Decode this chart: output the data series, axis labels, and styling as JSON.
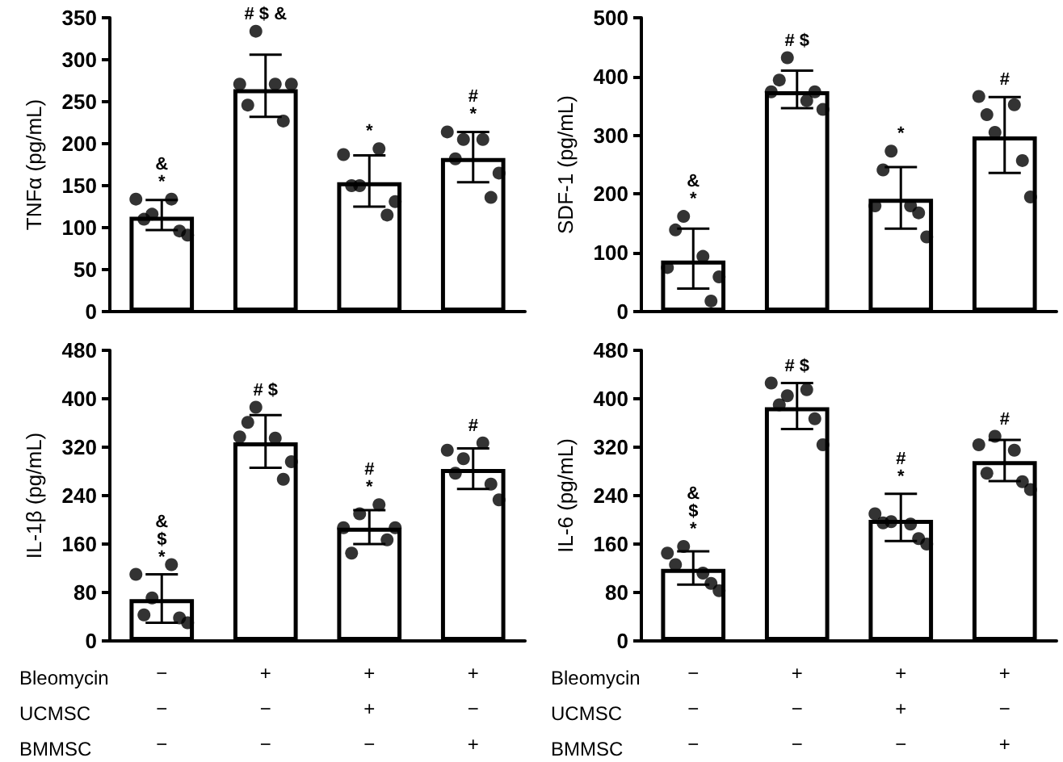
{
  "chart_data": [
    {
      "type": "bar",
      "ylabel": "TNFα (pg/mL)",
      "categories": [
        "−\n−\n−",
        "+\n−\n−",
        "+\n+\n−",
        "+\n−\n+"
      ],
      "ylim": [
        0,
        350
      ],
      "yticks": [
        0,
        50,
        100,
        150,
        200,
        250,
        300,
        350
      ],
      "tick_labels": "y",
      "grid": false,
      "annotations": [
        {
          "text": "&\n*",
          "x": "−\n−\n−",
          "y": 134
        },
        {
          "text": "# $ &",
          "x": "+\n−\n−",
          "y": 334
        },
        {
          "text": "*",
          "x": "+\n+\n−",
          "y": 194
        },
        {
          "text": "#\n*",
          "x": "+\n−\n+",
          "y": 214
        }
      ],
      "series": [
        {
          "type": "bar",
          "color": "#ffffff",
          "values": [
            113,
            265,
            154,
            183
          ],
          "errors": [
            [
              97,
              133
            ],
            [
              232,
              306
            ],
            [
              125,
              186
            ],
            [
              154,
              214
            ]
          ]
        },
        {
          "type": "scatter",
          "color": "#000000",
          "marker": "circle",
          "x": [
            "−\n−\n−",
            "−\n−\n−",
            "−\n−\n−",
            "−\n−\n−",
            "−\n−\n−",
            "−\n−\n−",
            "+\n−\n−",
            "+\n−\n−",
            "+\n−\n−",
            "+\n−\n−",
            "+\n−\n−",
            "+\n−\n−",
            "+\n+\n−",
            "+\n+\n−",
            "+\n+\n−",
            "+\n+\n−",
            "+\n+\n−",
            "+\n+\n−",
            "+\n−\n+",
            "+\n−\n+",
            "+\n−\n+",
            "+\n−\n+",
            "+\n−\n+",
            "+\n−\n+"
          ],
          "values": [
            134,
            116,
            134,
            91,
            110,
            96,
            271,
            334,
            271,
            271,
            246,
            227,
            187,
            150,
            194,
            131,
            150,
            115,
            214,
            205,
            205,
            165,
            182,
            136
          ]
        }
      ]
    },
    {
      "type": "bar",
      "ylabel": "SDF-1 (pg/mL)",
      "categories": [
        "−\n−\n−",
        "+\n−\n−",
        "+\n+\n−",
        "+\n−\n+"
      ],
      "ylim": [
        0,
        500
      ],
      "yticks": [
        0,
        100,
        200,
        300,
        400,
        500
      ],
      "tick_labels": "y",
      "grid": false,
      "annotations": [
        {
          "text": "&\n*",
          "x": "−\n−\n−",
          "y": 162
        },
        {
          "text": "# $",
          "x": "+\n−\n−",
          "y": 432
        },
        {
          "text": "*",
          "x": "+\n+\n−",
          "y": 273
        },
        {
          "text": "#",
          "x": "+\n−\n+",
          "y": 366
        }
      ],
      "series": [
        {
          "type": "bar",
          "color": "#ffffff",
          "values": [
            87,
            375,
            192,
            298
          ],
          "errors": [
            [
              39,
              141
            ],
            [
              346,
              410
            ],
            [
              141,
              246
            ],
            [
              236,
              365
            ]
          ]
        },
        {
          "type": "scatter",
          "color": "#000000",
          "marker": "circle",
          "x": [
            "−\n−\n−",
            "−\n−\n−",
            "−\n−\n−",
            "−\n−\n−",
            "−\n−\n−",
            "−\n−\n−",
            "+\n−\n−",
            "+\n−\n−",
            "+\n−\n−",
            "+\n−\n−",
            "+\n−\n−",
            "+\n−\n−",
            "+\n+\n−",
            "+\n+\n−",
            "+\n+\n−",
            "+\n+\n−",
            "+\n+\n−",
            "+\n+\n−",
            "+\n−\n+",
            "+\n−\n+",
            "+\n−\n+",
            "+\n−\n+",
            "+\n−\n+",
            "+\n−\n+"
          ],
          "values": [
            75,
            162,
            94,
            59,
            139,
            18,
            374,
            432,
            359,
            344,
            394,
            374,
            180,
            273,
            180,
            127,
            241,
            168,
            366,
            305,
            352,
            195,
            335,
            257
          ]
        }
      ]
    },
    {
      "type": "bar",
      "ylabel": "IL-1β (pg/mL)",
      "xlabel": "Bleomycin\nUCMSC\nBMMSC",
      "categories": [
        "−\n−\n−",
        "+\n−\n−",
        "+\n+\n−",
        "+\n−\n+"
      ],
      "ylim": [
        0,
        480
      ],
      "yticks": [
        0,
        80,
        160,
        240,
        320,
        400,
        480
      ],
      "grid": false,
      "annotations": [
        {
          "text": "&\n$\n*",
          "x": "−\n−\n−",
          "y": 110
        },
        {
          "text": "# $",
          "x": "+\n−\n−",
          "y": 386
        },
        {
          "text": "#\n*",
          "x": "+\n+\n−",
          "y": 225
        },
        {
          "text": "#",
          "x": "+\n−\n+",
          "y": 327
        }
      ],
      "series": [
        {
          "type": "bar",
          "color": "#ffffff",
          "values": [
            69,
            328,
            187,
            284
          ],
          "errors": [
            [
              30,
              110
            ],
            [
              286,
              373
            ],
            [
              160,
              216
            ],
            [
              251,
              318
            ]
          ]
        },
        {
          "type": "scatter",
          "color": "#000000",
          "marker": "circle",
          "x": [
            "−\n−\n−",
            "−\n−\n−",
            "−\n−\n−",
            "−\n−\n−",
            "−\n−\n−",
            "−\n−\n−",
            "+\n−\n−",
            "+\n−\n−",
            "+\n−\n−",
            "+\n−\n−",
            "+\n−\n−",
            "+\n−\n−",
            "+\n+\n−",
            "+\n+\n−",
            "+\n+\n−",
            "+\n+\n−",
            "+\n+\n−",
            "+\n+\n−",
            "+\n−\n+",
            "+\n−\n+",
            "+\n−\n+",
            "+\n−\n+",
            "+\n−\n+",
            "+\n−\n+"
          ],
          "values": [
            110,
            71,
            126,
            30,
            43,
            38,
            337,
            386,
            335,
            296,
            361,
            267,
            187,
            210,
            225,
            187,
            145,
            167,
            315,
            301,
            327,
            233,
            277,
            259
          ]
        }
      ]
    },
    {
      "type": "bar",
      "ylabel": "IL-6 (pg/mL)",
      "xlabel": "Bleomycin\nUCMSC\nBMMSC",
      "categories": [
        "−\n−\n−",
        "+\n−\n−",
        "+\n+\n−",
        "+\n−\n+"
      ],
      "ylim": [
        0,
        480
      ],
      "yticks": [
        0,
        80,
        160,
        240,
        320,
        400,
        480
      ],
      "grid": false,
      "annotations": [
        {
          "text": "&\n$\n*",
          "x": "−\n−\n−",
          "y": 156
        },
        {
          "text": "# $",
          "x": "+\n−\n−",
          "y": 426
        },
        {
          "text": "#\n*",
          "x": "+\n+\n−",
          "y": 243
        },
        {
          "text": "#",
          "x": "+\n−\n+",
          "y": 338
        }
      ],
      "series": [
        {
          "type": "bar",
          "color": "#ffffff",
          "values": [
            119,
            386,
            200,
            297
          ],
          "errors": [
            [
              93,
              148
            ],
            [
              350,
              426
            ],
            [
              165,
              243
            ],
            [
              264,
              332
            ]
          ]
        },
        {
          "type": "scatter",
          "color": "#000000",
          "marker": "circle",
          "x": [
            "−\n−\n−",
            "−\n−\n−",
            "−\n−\n−",
            "−\n−\n−",
            "−\n−\n−",
            "−\n−\n−",
            "+\n−\n−",
            "+\n−\n−",
            "+\n−\n−",
            "+\n−\n−",
            "+\n−\n−",
            "+\n−\n−",
            "+\n+\n−",
            "+\n+\n−",
            "+\n+\n−",
            "+\n+\n−",
            "+\n+\n−",
            "+\n+\n−",
            "+\n−\n+",
            "+\n−\n+",
            "+\n−\n+",
            "+\n−\n+",
            "+\n−\n+",
            "+\n−\n+"
          ],
          "values": [
            145,
            156,
            112,
            83,
            126,
            95,
            426,
            405,
            415,
            324,
            390,
            367,
            210,
            197,
            193,
            160,
            195,
            169,
            324,
            338,
            315,
            250,
            277,
            263
          ]
        }
      ]
    }
  ]
}
